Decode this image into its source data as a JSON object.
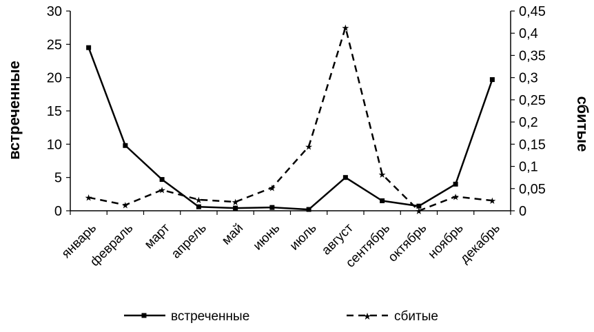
{
  "chart_data": {
    "type": "line",
    "categories": [
      "январь",
      "февраль",
      "март",
      "апрель",
      "май",
      "июнь",
      "июль",
      "август",
      "сентябрь",
      "октябрь",
      "ноябрь",
      "декабрь"
    ],
    "series": [
      {
        "name": "встреченные",
        "axis": "left",
        "style": "solid",
        "marker": "square",
        "color": "#000000",
        "values": [
          24.5,
          9.8,
          4.7,
          0.6,
          0.4,
          0.5,
          0.2,
          5.0,
          1.5,
          0.7,
          4.0,
          19.7
        ]
      },
      {
        "name": "сбитые",
        "axis": "right",
        "style": "dashed",
        "marker": "star",
        "color": "#000000",
        "values": [
          0.03,
          0.013,
          0.047,
          0.025,
          0.02,
          0.052,
          0.145,
          0.413,
          0.082,
          0.0,
          0.032,
          0.023
        ]
      }
    ],
    "ylabel": "встреченные",
    "y2label": "сбитые",
    "ylim": [
      0,
      30
    ],
    "yticks": [
      "0",
      "5",
      "10",
      "15",
      "20",
      "25",
      "30"
    ],
    "y2lim": [
      0,
      0.45
    ],
    "y2ticks": [
      "0",
      "0,05",
      "0,1",
      "0,15",
      "0,2",
      "0,25",
      "0,3",
      "0,35",
      "0,4",
      "0,45"
    ],
    "grid": false,
    "legend": "bottom"
  }
}
